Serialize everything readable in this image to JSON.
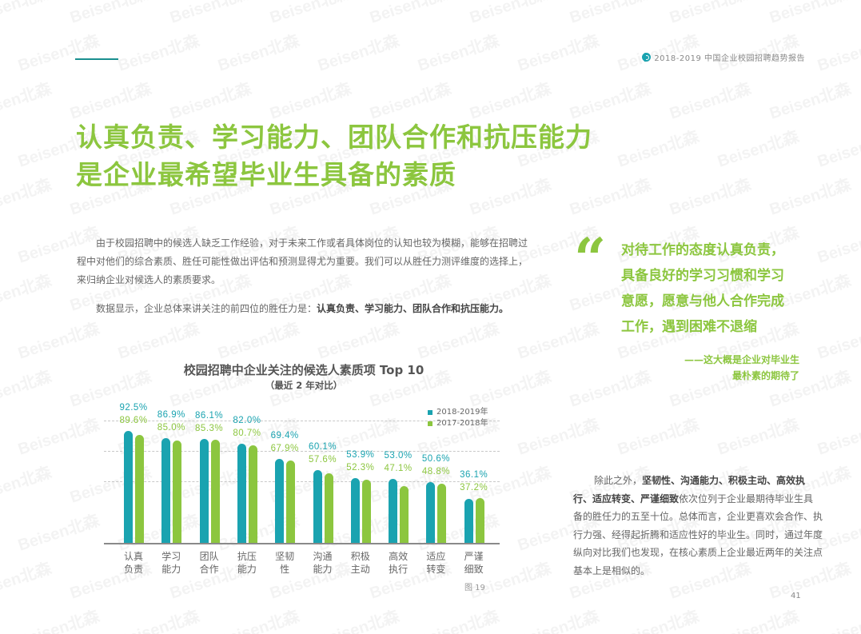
{
  "header": {
    "report_title": "2018-2019 中国企业校园招聘趋势报告",
    "logo_icon": "search-circle-icon"
  },
  "page_title": {
    "line1": "认真负责、学习能力、团队合作和抗压能力",
    "line2": "是企业最希望毕业生具备的素质"
  },
  "intro": {
    "paragraph1": "由于校园招聘中的候选人缺乏工作经验，对于未来工作或者具体岗位的认知也较为模糊，能够在招聘过程中对他们的综合素质、胜任可能性做出评估和预测显得尤为重要。我们可以从胜任力测评维度的选择上，来归纳企业对候选人的素质要求。",
    "paragraph2_prefix": "数据显示，企业总体来讲关注的前四位的胜任力是：",
    "paragraph2_bold": "认真负责、学习能力、团队合作和抗压能力。"
  },
  "quote": {
    "mark": "“",
    "lines": [
      "对待工作的态度认真负责，",
      "具备良好的学习习惯和学习",
      "意愿，愿意与他人合作完成",
      "工作，遇到困难不退缩"
    ],
    "attribution_line1": "——这大概是企业对毕业生",
    "attribution_line2": "最朴素的期待了"
  },
  "summary": {
    "prefix": "除此之外，",
    "bold": "坚韧性、沟通能力、积极主动、高效执行、适应转变、严谨细致",
    "suffix": "依次位列于企业最期待毕业生具备的胜任力的五至十位。总体而言，企业更喜欢会合作、执行力强、经得起折腾和适应性好的毕业生。同时，通过年度纵向对比我们也发现，在核心素质上企业最近两年的关注点基本上是相似的。"
  },
  "figure_label": "图 19",
  "page_number": "41",
  "watermark_text": "Beisen北森",
  "colors": {
    "accent_green": "#8cc63f",
    "accent_teal": "#1aa3b0",
    "series_2018_2019": "#1aa3b0",
    "series_2017_2018": "#8cc63f"
  },
  "chart_data": {
    "type": "bar",
    "title": "校园招聘中企业关注的候选人素质项 Top 10",
    "subtitle": "（最近 2 年对比）",
    "xlabel": "",
    "ylabel": "",
    "ylim": [
      0,
      100
    ],
    "grid": true,
    "legend_position": "top-right",
    "categories": [
      "认真负责",
      "学习能力",
      "团队合作",
      "抗压能力",
      "坚韧性",
      "沟通能力",
      "积极主动",
      "高效执行",
      "适应转变",
      "严谨细致"
    ],
    "category_lines": [
      [
        "认真",
        "负责"
      ],
      [
        "学习",
        "能力"
      ],
      [
        "团队",
        "合作"
      ],
      [
        "抗压",
        "能力"
      ],
      [
        "坚韧",
        "性"
      ],
      [
        "沟通",
        "能力"
      ],
      [
        "积极",
        "主动"
      ],
      [
        "高效",
        "执行"
      ],
      [
        "适应",
        "转变"
      ],
      [
        "严谨",
        "细致"
      ]
    ],
    "series": [
      {
        "name": "2018-2019年",
        "color": "#1aa3b0",
        "values": [
          92.5,
          86.9,
          86.1,
          82.0,
          69.4,
          60.1,
          53.9,
          53.0,
          50.6,
          36.1
        ],
        "labels": [
          "92.5%",
          "86.9%",
          "86.1%",
          "82.0%",
          "69.4%",
          "60.1%",
          "53.9%",
          "53.0%",
          "50.6%",
          "36.1%"
        ]
      },
      {
        "name": "2017-2018年",
        "color": "#8cc63f",
        "values": [
          89.6,
          85.0,
          85.3,
          80.7,
          67.9,
          57.6,
          52.3,
          47.1,
          48.8,
          37.2
        ],
        "labels": [
          "89.6%",
          "85.0%",
          "85.3%",
          "80.7%",
          "67.9%",
          "57.6%",
          "52.3%",
          "47.1%",
          "48.8%",
          "37.2%"
        ]
      }
    ]
  }
}
